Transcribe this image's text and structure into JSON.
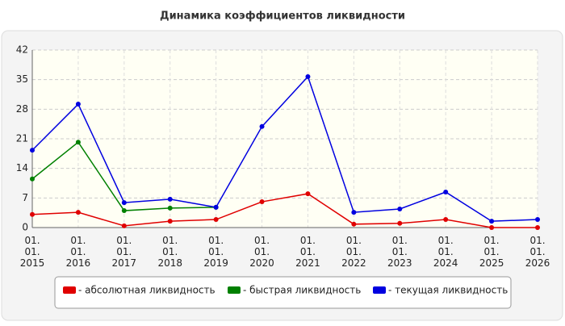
{
  "chart_data": {
    "type": "line",
    "title": "Динамика коэффициентов ликвидности",
    "categories": [
      "01.01.2015",
      "01.01.2016",
      "01.01.2017",
      "01.01.2018",
      "01.01.2019",
      "01.01.2020",
      "01.01.2021",
      "01.01.2022",
      "01.01.2023",
      "01.01.2024",
      "01.01.2025",
      "01.01.2026"
    ],
    "series": [
      {
        "name": "- абсолютная ликвидность",
        "color": "#e00000",
        "values": [
          3.1,
          3.6,
          0.4,
          1.5,
          1.9,
          6.1,
          8.0,
          0.8,
          1.0,
          1.9,
          0,
          0
        ]
      },
      {
        "name": "- быстрая ликвидность",
        "color": "#008000",
        "values": [
          11.5,
          20.2,
          4.0,
          4.6,
          4.8,
          null,
          null,
          null,
          null,
          null,
          null,
          null
        ]
      },
      {
        "name": "- текущая ликвидность",
        "color": "#0000e0",
        "values": [
          18.3,
          29.2,
          5.9,
          6.7,
          4.8,
          23.9,
          35.7,
          3.6,
          4.4,
          8.4,
          1.5,
          1.9
        ]
      }
    ],
    "ylim": [
      0,
      42
    ],
    "yticks": [
      0,
      7,
      14,
      21,
      28,
      35,
      42
    ],
    "grid": true
  }
}
